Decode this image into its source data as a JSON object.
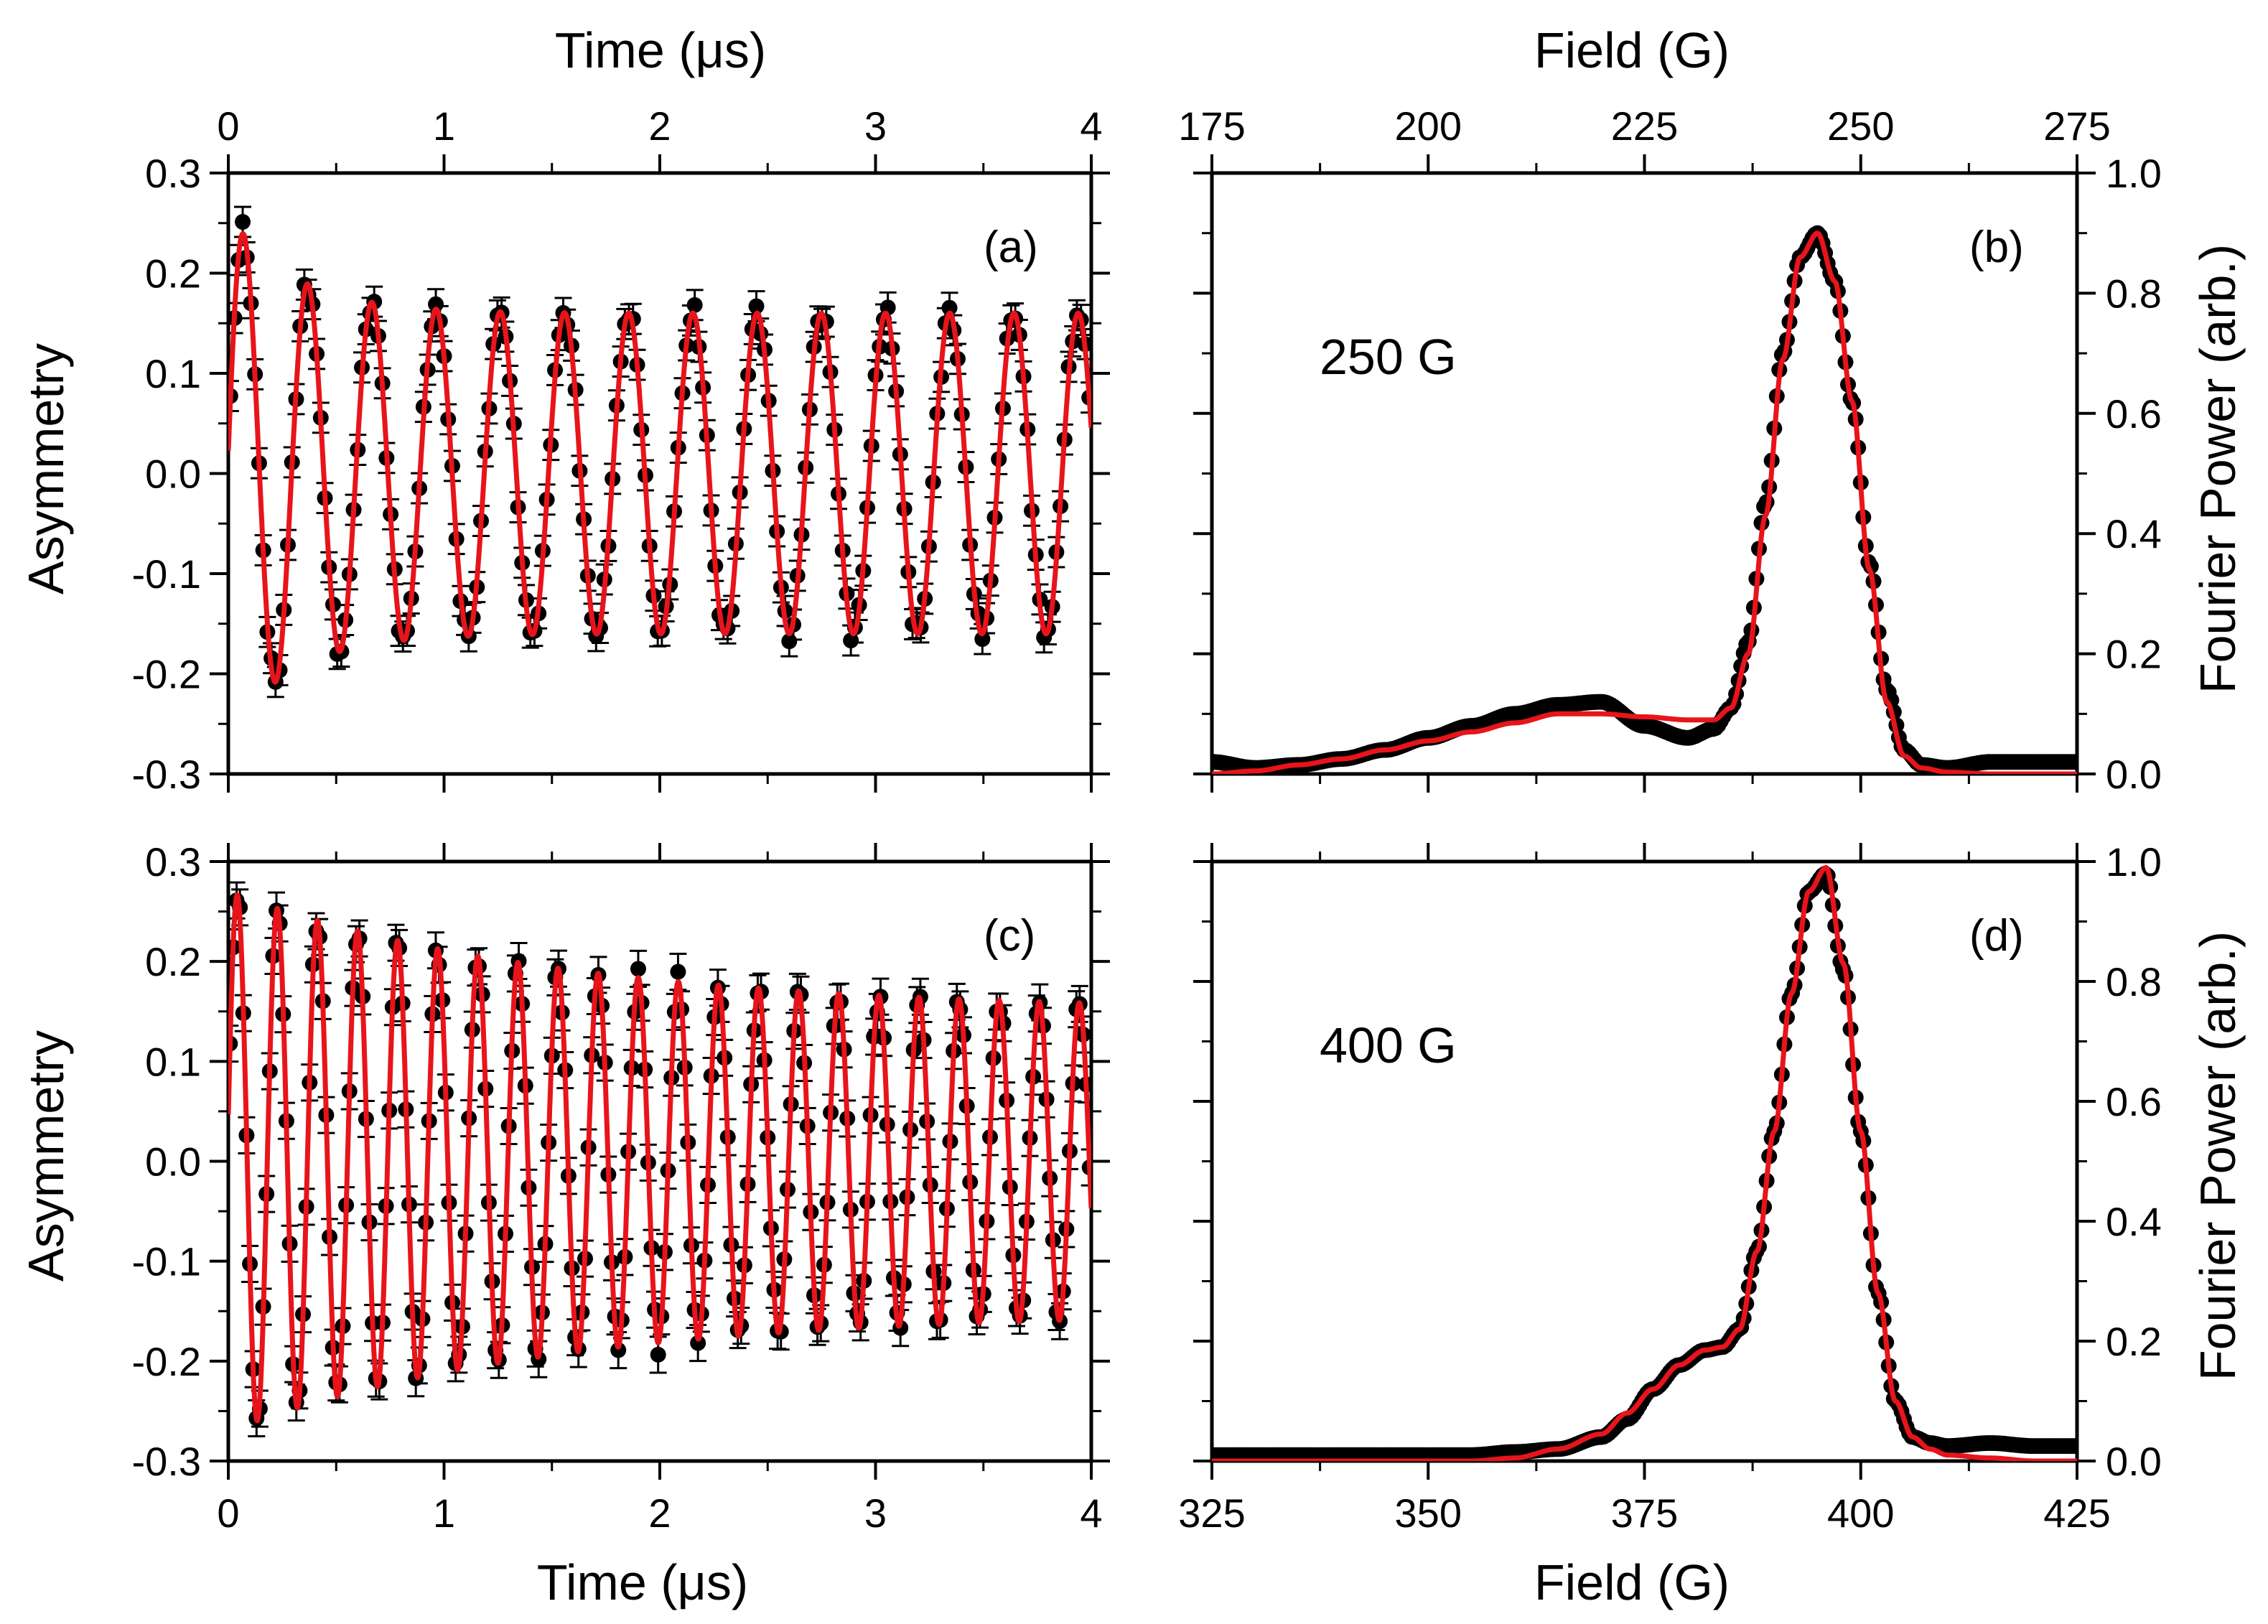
{
  "figure": {
    "top_axis_titles": {
      "time": "Time (μs)",
      "field": "Field (G)"
    },
    "bottom_axis_titles": {
      "time": "Time (μs)",
      "field": "Field (G)"
    },
    "left_axis_title": "Asymmetry",
    "right_axis_title": "Fourier Power (arb.)",
    "colors": {
      "data": "#000000",
      "fit": "#e8141b"
    }
  },
  "chart_data": [
    {
      "id": "a",
      "panel_label": "(a)",
      "type": "scatter",
      "xlabel": "Time (μs)",
      "ylabel": "Asymmetry",
      "xlim": [
        0,
        4
      ],
      "ylim": [
        -0.3,
        0.3
      ],
      "xticks": [
        0,
        1,
        2,
        3,
        4
      ],
      "yticks": [
        -0.3,
        -0.2,
        -0.1,
        0.0,
        0.1,
        0.2,
        0.3
      ],
      "xtick_labels": [
        "0",
        "1",
        "2",
        "3",
        "4"
      ],
      "ytick_labels": [
        "-0.3",
        "-0.2",
        "-0.1",
        "0.0",
        "0.1",
        "0.2",
        "0.3"
      ],
      "series": [
        {
          "name": "data",
          "style": "black circles with error bars",
          "approx_model": {
            "baseline": 0.0,
            "amp": 0.16,
            "amp_extra": 0.1,
            "extra_decay_us": 0.3,
            "freq_MHz": 3.36,
            "phase_deg": 85,
            "n_points": 210,
            "error_bar": 0.015
          }
        },
        {
          "name": "fit",
          "style": "red line"
        }
      ]
    },
    {
      "id": "b",
      "panel_label": "(b)",
      "type": "line",
      "annotation": "250 G",
      "xlabel": "Field (G)",
      "ylabel": "Fourier Power (arb.)",
      "xlim": [
        175,
        275
      ],
      "ylim": [
        0.0,
        1.0
      ],
      "xticks": [
        175,
        200,
        225,
        250,
        275
      ],
      "yticks": [
        0.0,
        0.2,
        0.4,
        0.6,
        0.8,
        1.0
      ],
      "xtick_labels": [
        "175",
        "200",
        "225",
        "250",
        "275"
      ],
      "ytick_labels": [
        "0.0",
        "0.2",
        "0.4",
        "0.6",
        "0.8",
        "1.0"
      ],
      "series": [
        {
          "name": "data",
          "style": "black dots",
          "x": [
            175,
            180,
            185,
            190,
            195,
            200,
            205,
            210,
            215,
            220,
            225,
            230,
            233,
            235,
            237,
            239,
            241,
            243,
            245,
            247,
            249,
            251,
            253,
            255,
            257,
            260,
            265,
            270,
            275
          ],
          "y": [
            0.02,
            0.01,
            0.015,
            0.025,
            0.04,
            0.06,
            0.08,
            0.1,
            0.115,
            0.12,
            0.08,
            0.06,
            0.075,
            0.11,
            0.22,
            0.45,
            0.7,
            0.86,
            0.9,
            0.82,
            0.62,
            0.35,
            0.14,
            0.04,
            0.015,
            0.01,
            0.02,
            0.02,
            0.02
          ]
        },
        {
          "name": "fit",
          "style": "red line",
          "x": [
            175,
            180,
            185,
            190,
            195,
            200,
            205,
            210,
            215,
            220,
            225,
            230,
            233,
            235,
            237,
            239,
            241,
            243,
            245,
            247,
            249,
            251,
            253,
            255,
            257,
            260,
            265,
            270,
            275
          ],
          "y": [
            0.0,
            0.005,
            0.015,
            0.025,
            0.04,
            0.055,
            0.07,
            0.085,
            0.1,
            0.1,
            0.095,
            0.09,
            0.09,
            0.11,
            0.2,
            0.43,
            0.69,
            0.86,
            0.9,
            0.82,
            0.62,
            0.34,
            0.12,
            0.03,
            0.01,
            0.003,
            0.0,
            0.0,
            0.0
          ]
        }
      ]
    },
    {
      "id": "c",
      "panel_label": "(c)",
      "type": "scatter",
      "xlabel": "Time (μs)",
      "ylabel": "Asymmetry",
      "xlim": [
        0,
        4
      ],
      "ylim": [
        -0.3,
        0.3
      ],
      "xticks": [
        0,
        1,
        2,
        3,
        4
      ],
      "yticks": [
        -0.3,
        -0.2,
        -0.1,
        0.0,
        0.1,
        0.2,
        0.3
      ],
      "xtick_labels": [
        "0",
        "1",
        "2",
        "3",
        "4"
      ],
      "ytick_labels": [
        "-0.3",
        "-0.2",
        "-0.1",
        "0.0",
        "0.1",
        "0.2",
        "0.3"
      ],
      "series": [
        {
          "name": "data",
          "style": "black circles with error bars",
          "approx_model": {
            "baseline": 0.0,
            "amp": 0.15,
            "amp_extra": 0.12,
            "extra_decay_us": 1.5,
            "freq_MHz": 5.38,
            "phase_deg": 80,
            "n_points": 260,
            "error_bar": 0.018
          }
        },
        {
          "name": "fit",
          "style": "red line"
        }
      ]
    },
    {
      "id": "d",
      "panel_label": "(d)",
      "type": "line",
      "annotation": "400 G",
      "xlabel": "Field (G)",
      "ylabel": "Fourier Power (arb.)",
      "xlim": [
        325,
        425
      ],
      "ylim": [
        0.0,
        1.0
      ],
      "xticks": [
        325,
        350,
        375,
        400,
        425
      ],
      "yticks": [
        0.0,
        0.2,
        0.4,
        0.6,
        0.8,
        1.0
      ],
      "xtick_labels": [
        "325",
        "350",
        "375",
        "400",
        "425"
      ],
      "ytick_labels": [
        "0.0",
        "0.2",
        "0.4",
        "0.6",
        "0.8",
        "1.0"
      ],
      "series": [
        {
          "name": "data",
          "style": "black dots",
          "x": [
            325,
            330,
            335,
            340,
            345,
            350,
            355,
            360,
            365,
            370,
            373,
            376,
            379,
            382,
            384,
            386,
            388,
            390,
            392,
            394,
            396,
            398,
            400,
            402,
            404,
            406,
            408,
            410,
            415,
            420,
            425
          ],
          "y": [
            0.01,
            0.01,
            0.01,
            0.01,
            0.01,
            0.01,
            0.01,
            0.015,
            0.02,
            0.04,
            0.07,
            0.12,
            0.16,
            0.185,
            0.19,
            0.22,
            0.35,
            0.55,
            0.78,
            0.95,
            0.98,
            0.82,
            0.55,
            0.28,
            0.1,
            0.04,
            0.03,
            0.025,
            0.03,
            0.025,
            0.025
          ]
        },
        {
          "name": "fit",
          "style": "red line",
          "x": [
            325,
            335,
            345,
            355,
            360,
            365,
            370,
            373,
            376,
            379,
            382,
            384,
            386,
            388,
            390,
            392,
            394,
            396,
            398,
            400,
            402,
            404,
            406,
            408,
            410,
            415,
            420,
            425
          ],
          "y": [
            0.0,
            0.0,
            0.0,
            0.0,
            0.005,
            0.02,
            0.045,
            0.08,
            0.12,
            0.16,
            0.185,
            0.19,
            0.22,
            0.35,
            0.55,
            0.78,
            0.95,
            0.99,
            0.83,
            0.55,
            0.28,
            0.1,
            0.04,
            0.02,
            0.01,
            0.005,
            0.0,
            0.0
          ]
        }
      ]
    }
  ]
}
